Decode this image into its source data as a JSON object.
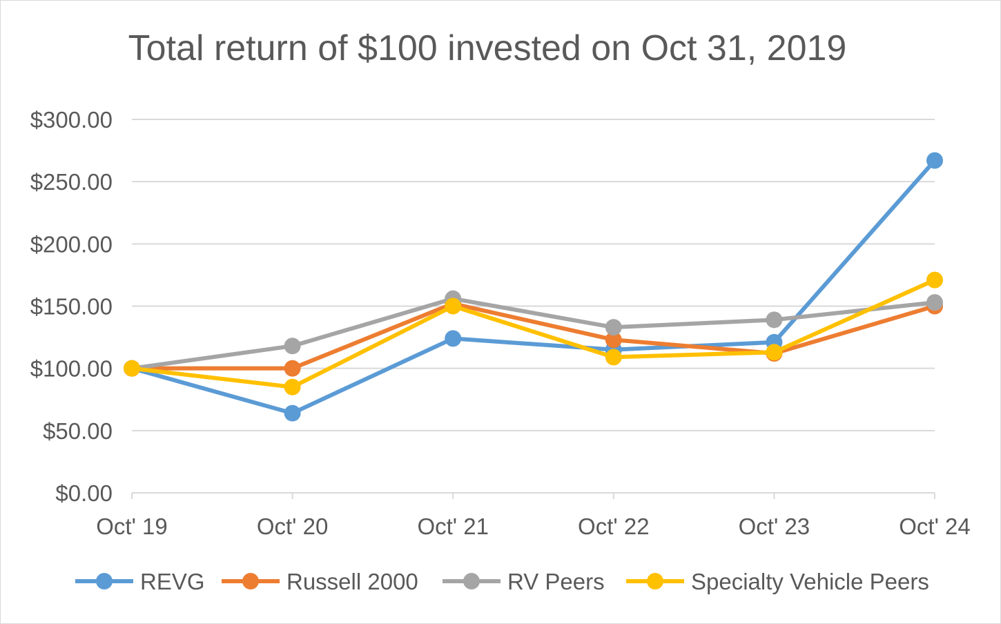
{
  "chart_data": {
    "type": "line",
    "title": "Total return of $100 invested on Oct 31, 2019",
    "xlabel": "",
    "ylabel": "",
    "categories": [
      "Oct' 19",
      "Oct' 20",
      "Oct' 21",
      "Oct' 22",
      "Oct' 23",
      "Oct' 24"
    ],
    "ylim": [
      0,
      300
    ],
    "yticks": [
      0,
      50,
      100,
      150,
      200,
      250,
      300
    ],
    "ytick_labels": [
      "$0.00",
      "$50.00",
      "$100.00",
      "$150.00",
      "$200.00",
      "$250.00",
      "$300.00"
    ],
    "grid": true,
    "legend_position": "bottom",
    "series": [
      {
        "name": "REVG",
        "color": "#5b9bd5",
        "values": [
          100,
          64,
          124,
          115,
          121,
          267
        ]
      },
      {
        "name": "Russell 2000",
        "color": "#ed7d31",
        "values": [
          100,
          100,
          152,
          123,
          112,
          150
        ]
      },
      {
        "name": "RV Peers",
        "color": "#a5a5a5",
        "values": [
          100,
          118,
          156,
          133,
          139,
          153
        ]
      },
      {
        "name": "Specialty Vehicle Peers",
        "color": "#ffc000",
        "values": [
          100,
          85,
          150,
          109,
          113,
          171
        ]
      }
    ]
  }
}
